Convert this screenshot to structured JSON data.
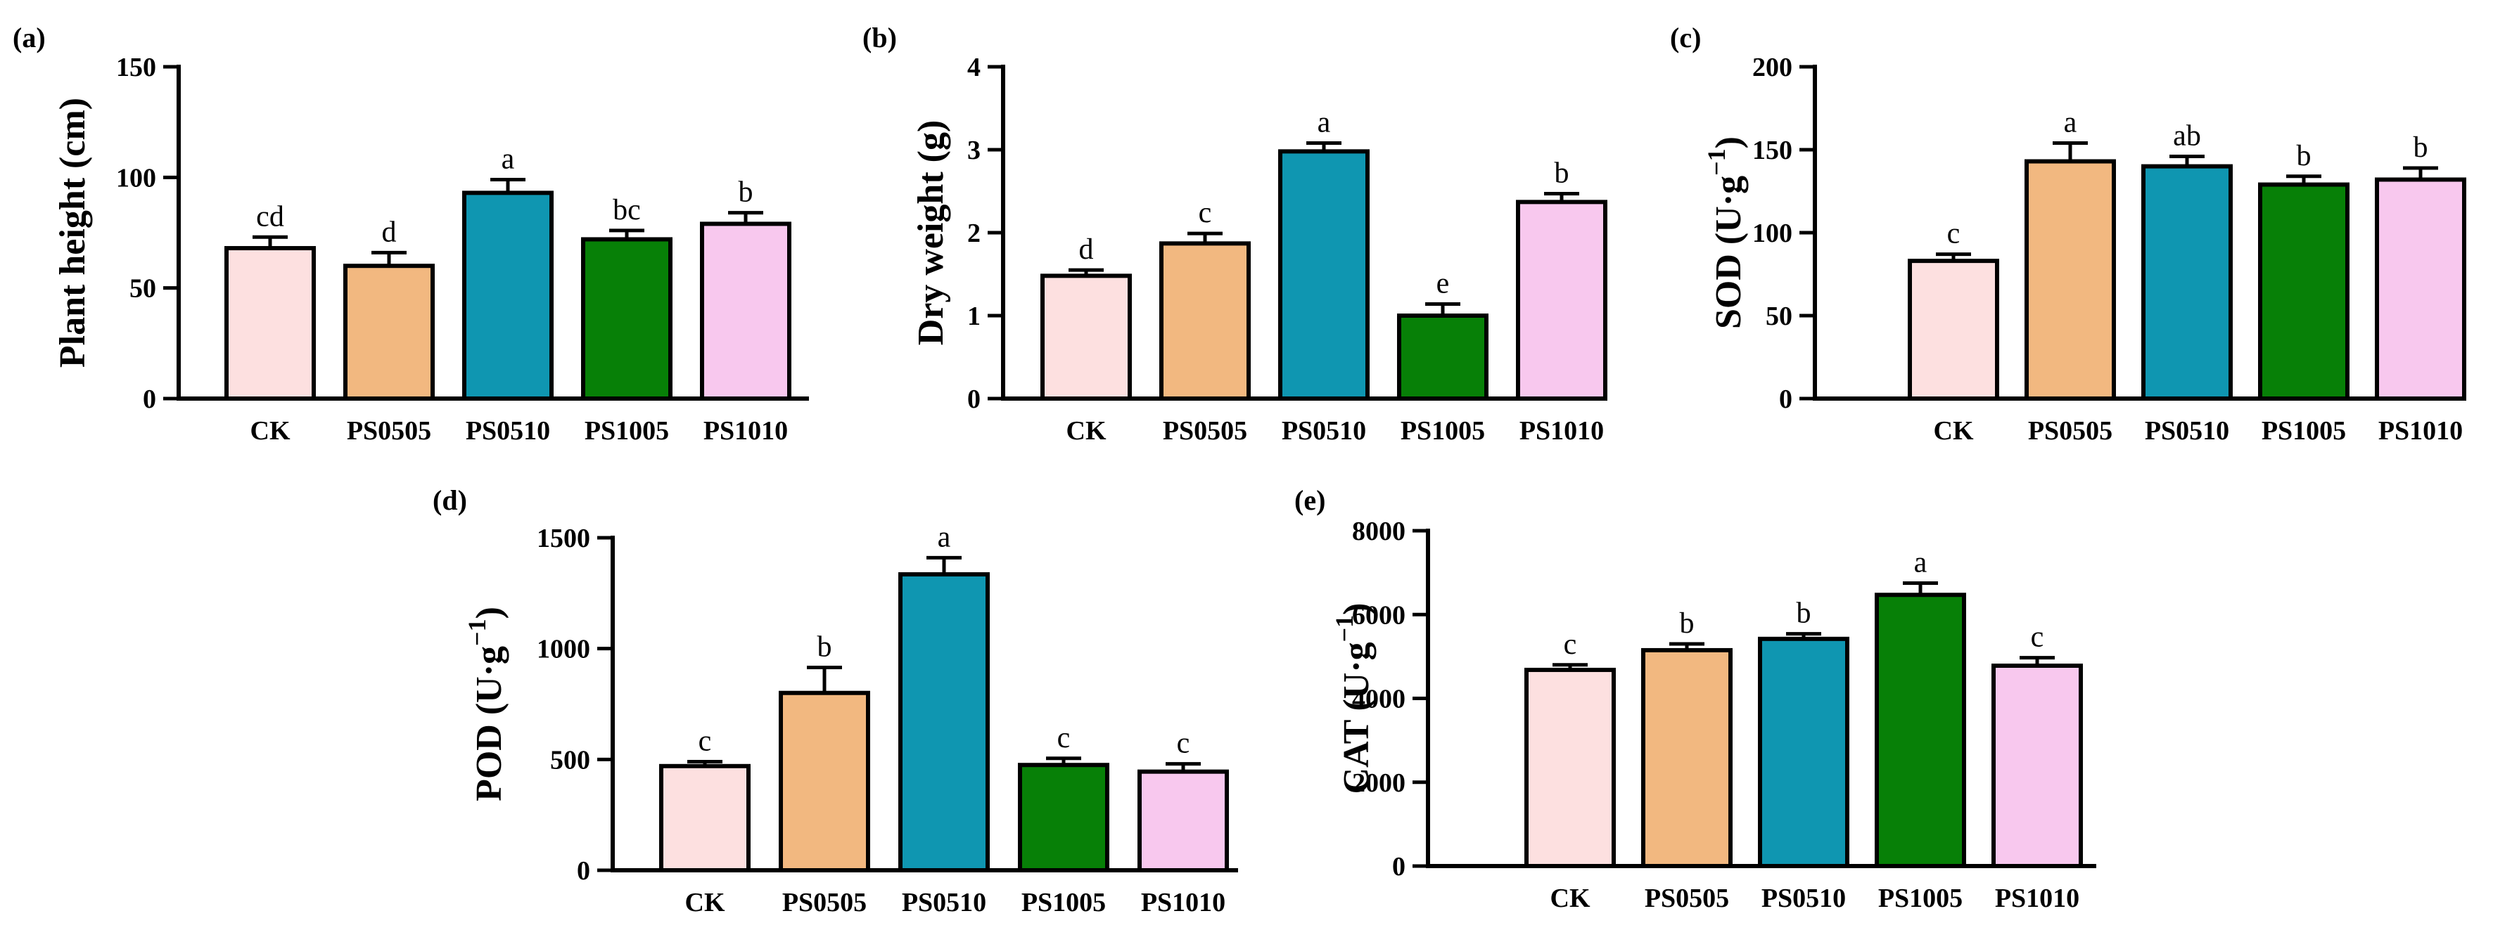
{
  "chart_data": [
    {
      "type": "bar",
      "panel_label": "(a)",
      "ylabel": "Plant height (cm)",
      "ylim": [
        0,
        150
      ],
      "yticks": [
        0,
        50,
        100,
        150
      ],
      "categories": [
        "CK",
        "PS0505",
        "PS0510",
        "PS1005",
        "PS1010"
      ],
      "values": [
        68,
        60,
        93,
        72,
        79
      ],
      "errors": [
        5,
        6,
        6,
        4,
        5
      ],
      "significance": [
        "cd",
        "d",
        "a",
        "bc",
        "b"
      ],
      "colors": [
        "#fde0e0",
        "#f2b880",
        "#0f96b1",
        "#078007",
        "#f8c8ee"
      ]
    },
    {
      "type": "bar",
      "panel_label": "(b)",
      "ylabel": "Dry weight (g)",
      "ylim": [
        0,
        4
      ],
      "yticks": [
        0,
        1,
        2,
        3,
        4
      ],
      "categories": [
        "CK",
        "PS0505",
        "PS0510",
        "PS1005",
        "PS1010"
      ],
      "values": [
        1.48,
        1.87,
        2.98,
        1.0,
        2.37
      ],
      "errors": [
        0.07,
        0.12,
        0.1,
        0.14,
        0.1
      ],
      "significance": [
        "d",
        "c",
        "a",
        "e",
        "b"
      ],
      "colors": [
        "#fde0e0",
        "#f2b880",
        "#0f96b1",
        "#078007",
        "#f8c8ee"
      ]
    },
    {
      "type": "bar",
      "panel_label": "(c)",
      "ylabel": "SOD (U·g",
      "ylabel_sup": "−1",
      "ylabel_end": ")",
      "ylim": [
        0,
        200
      ],
      "yticks": [
        0,
        50,
        100,
        150,
        200
      ],
      "categories": [
        "CK",
        "PS0505",
        "PS0510",
        "PS1005",
        "PS1010"
      ],
      "values": [
        83,
        143,
        140,
        129,
        132
      ],
      "errors": [
        4,
        11,
        6,
        5,
        7
      ],
      "significance": [
        "c",
        "a",
        "ab",
        "b",
        "b"
      ],
      "colors": [
        "#fde0e0",
        "#f2b880",
        "#0f96b1",
        "#078007",
        "#f8c8ee"
      ]
    },
    {
      "type": "bar",
      "panel_label": "(d)",
      "ylabel": "POD (U·g",
      "ylabel_sup": "−1",
      "ylabel_end": ")",
      "ylim": [
        0,
        1500
      ],
      "yticks": [
        0,
        500,
        1000,
        1500
      ],
      "categories": [
        "CK",
        "PS0505",
        "PS0510",
        "PS1005",
        "PS1010"
      ],
      "values": [
        470,
        800,
        1335,
        475,
        445
      ],
      "errors": [
        20,
        115,
        75,
        30,
        35
      ],
      "significance": [
        "c",
        "b",
        "a",
        "c",
        "c"
      ],
      "colors": [
        "#fde0e0",
        "#f2b880",
        "#0f96b1",
        "#078007",
        "#f8c8ee"
      ]
    },
    {
      "type": "bar",
      "panel_label": "(e)",
      "ylabel": "CAT (U·g",
      "ylabel_sup": "−1",
      "ylabel_end": ")",
      "ylim": [
        0,
        8000
      ],
      "yticks": [
        0,
        2000,
        4000,
        6000,
        8000
      ],
      "categories": [
        "CK",
        "PS0505",
        "PS0510",
        "PS1005",
        "PS1010"
      ],
      "values": [
        4680,
        5150,
        5420,
        6470,
        4780
      ],
      "errors": [
        120,
        150,
        120,
        280,
        190
      ],
      "significance": [
        "c",
        "b",
        "b",
        "a",
        "c"
      ],
      "colors": [
        "#fde0e0",
        "#f2b880",
        "#0f96b1",
        "#078007",
        "#f8c8ee"
      ]
    }
  ]
}
